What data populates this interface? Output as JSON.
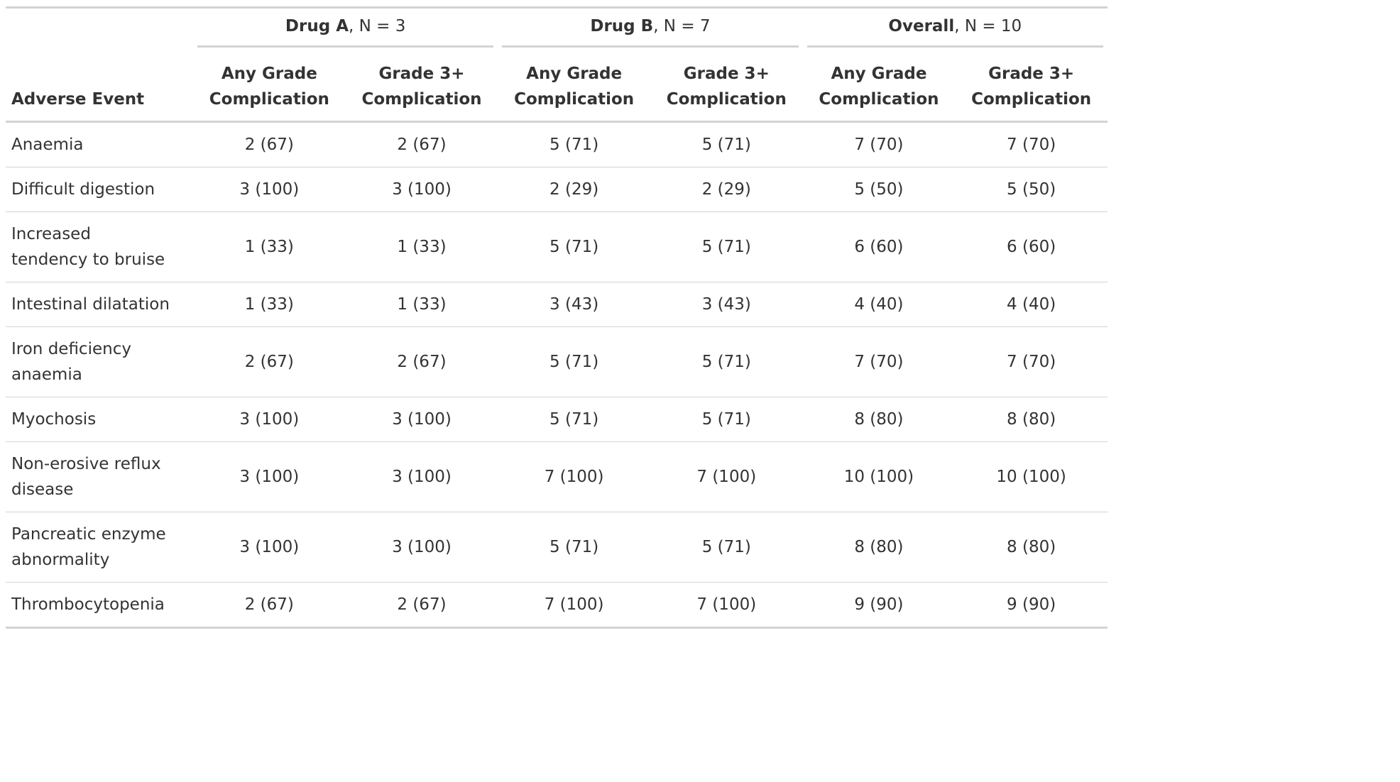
{
  "table": {
    "stub_header": "Adverse Event",
    "spanners": [
      {
        "name": "Drug A",
        "n": ", N = 3"
      },
      {
        "name": "Drug B",
        "n": ", N = 7"
      },
      {
        "name": "Overall",
        "n": ", N = 10"
      }
    ],
    "columns": [
      "Any Grade Complication",
      "Grade 3+ Complication",
      "Any Grade Complication",
      "Grade 3+ Complication",
      "Any Grade Complication",
      "Grade 3+ Complication"
    ],
    "rows": [
      {
        "label": "Anaemia",
        "cells": [
          "2 (67)",
          "2 (67)",
          "5 (71)",
          "5 (71)",
          "7 (70)",
          "7 (70)"
        ]
      },
      {
        "label": "Difficult digestion",
        "cells": [
          "3 (100)",
          "3 (100)",
          "2 (29)",
          "2 (29)",
          "5 (50)",
          "5 (50)"
        ]
      },
      {
        "label": "Increased tendency to bruise",
        "cells": [
          "1 (33)",
          "1 (33)",
          "5 (71)",
          "5 (71)",
          "6 (60)",
          "6 (60)"
        ]
      },
      {
        "label": "Intestinal dilatation",
        "cells": [
          "1 (33)",
          "1 (33)",
          "3 (43)",
          "3 (43)",
          "4 (40)",
          "4 (40)"
        ]
      },
      {
        "label": "Iron deficiency anaemia",
        "cells": [
          "2 (67)",
          "2 (67)",
          "5 (71)",
          "5 (71)",
          "7 (70)",
          "7 (70)"
        ]
      },
      {
        "label": "Myochosis",
        "cells": [
          "3 (100)",
          "3 (100)",
          "5 (71)",
          "5 (71)",
          "8 (80)",
          "8 (80)"
        ]
      },
      {
        "label": "Non-erosive reflux disease",
        "cells": [
          "3 (100)",
          "3 (100)",
          "7 (100)",
          "7 (100)",
          "10 (100)",
          "10 (100)"
        ]
      },
      {
        "label": "Pancreatic enzyme abnormality",
        "cells": [
          "3 (100)",
          "3 (100)",
          "5 (71)",
          "5 (71)",
          "8 (80)",
          "8 (80)"
        ]
      },
      {
        "label": "Thrombocytopenia",
        "cells": [
          "2 (67)",
          "2 (67)",
          "7 (100)",
          "7 (100)",
          "9 (90)",
          "9 (90)"
        ]
      }
    ]
  }
}
